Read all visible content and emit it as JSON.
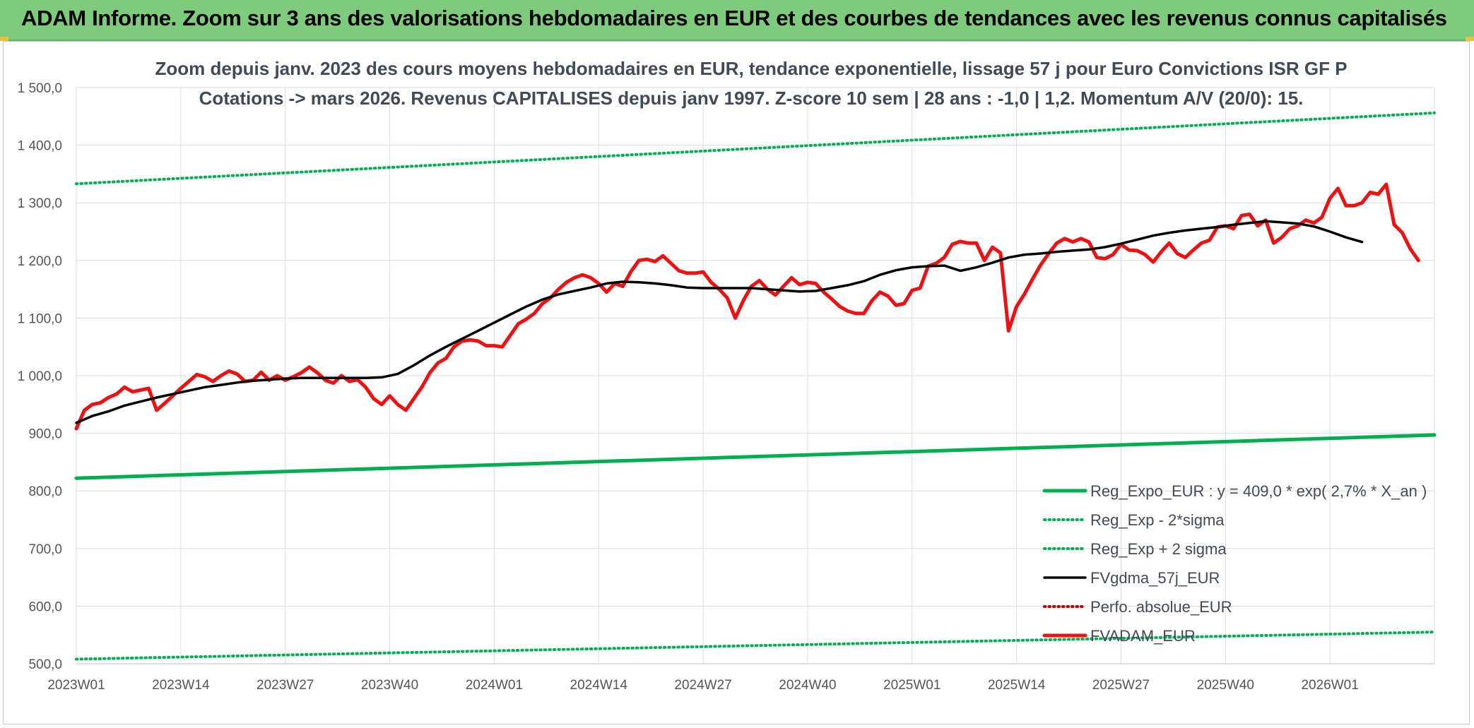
{
  "banner": {
    "title": "ADAM Informe. Zoom sur 3 ans des valorisations hebdomadaires en EUR et des courbes de tendances avec les revenus connus capitalisés"
  },
  "chart_data": {
    "type": "line",
    "title": "Zoom depuis janv. 2023 des cours moyens hebdomadaires en EUR, tendance exponentielle, lissage 57 j pour Euro Convictions ISR GF P",
    "subtitle": "Cotations -> mars 2026. Revenus CAPITALISES depuis janv 1997. Z-score 10 sem | 28 ans : -1,0 | 1,2. Momentum A/V (20/0): 15.",
    "ylim": [
      500,
      1500
    ],
    "y_ticks": [
      "500,0",
      "600,0",
      "700,0",
      "800,0",
      "900,0",
      "1 000,0",
      "1 100,0",
      "1 200,0",
      "1 300,0",
      "1 400,0",
      "1 500,0"
    ],
    "x_ticks": [
      "2023W01",
      "2023W14",
      "2023W27",
      "2023W40",
      "2024W01",
      "2024W14",
      "2024W27",
      "2024W40",
      "2025W01",
      "2025W14",
      "2025W27",
      "2025W40",
      "2026W01"
    ],
    "grid": true,
    "legend_position": "bottom-right",
    "series": [
      {
        "name": "Reg_Expo_EUR : y = 409,0 * exp( 2,7% *  X_an )",
        "color": "#00b050",
        "style": "solid-thick",
        "points": [
          [
            0,
            822
          ],
          [
            169,
            897
          ]
        ]
      },
      {
        "name": "Reg_Exp - 2*sigma",
        "color": "#00b050",
        "style": "dotted",
        "points": [
          [
            0,
            508
          ],
          [
            169,
            555
          ]
        ]
      },
      {
        "name": "Reg_Exp + 2 sigma",
        "color": "#00b050",
        "style": "dotted",
        "points": [
          [
            0,
            1333
          ],
          [
            169,
            1456
          ]
        ]
      },
      {
        "name": "FVgdma_57j_EUR",
        "color": "#000000",
        "style": "solid",
        "points": [
          [
            0,
            918
          ],
          [
            2,
            930
          ],
          [
            4,
            938
          ],
          [
            6,
            948
          ],
          [
            8,
            955
          ],
          [
            10,
            962
          ],
          [
            12,
            968
          ],
          [
            14,
            974
          ],
          [
            16,
            980
          ],
          [
            18,
            984
          ],
          [
            20,
            988
          ],
          [
            22,
            991
          ],
          [
            24,
            993
          ],
          [
            26,
            995
          ],
          [
            28,
            996
          ],
          [
            30,
            996
          ],
          [
            32,
            996
          ],
          [
            34,
            996
          ],
          [
            36,
            996
          ],
          [
            38,
            997
          ],
          [
            40,
            1003
          ],
          [
            42,
            1018
          ],
          [
            44,
            1035
          ],
          [
            46,
            1050
          ],
          [
            48,
            1064
          ],
          [
            50,
            1078
          ],
          [
            52,
            1092
          ],
          [
            54,
            1106
          ],
          [
            56,
            1120
          ],
          [
            58,
            1132
          ],
          [
            60,
            1141
          ],
          [
            62,
            1147
          ],
          [
            64,
            1153
          ],
          [
            66,
            1160
          ],
          [
            68,
            1163
          ],
          [
            70,
            1162
          ],
          [
            72,
            1160
          ],
          [
            74,
            1157
          ],
          [
            76,
            1153
          ],
          [
            78,
            1152
          ],
          [
            80,
            1152
          ],
          [
            82,
            1152
          ],
          [
            84,
            1152
          ],
          [
            86,
            1150
          ],
          [
            88,
            1148
          ],
          [
            90,
            1146
          ],
          [
            92,
            1147
          ],
          [
            94,
            1152
          ],
          [
            96,
            1157
          ],
          [
            98,
            1164
          ],
          [
            100,
            1175
          ],
          [
            102,
            1183
          ],
          [
            104,
            1188
          ],
          [
            106,
            1190
          ],
          [
            108,
            1191
          ],
          [
            110,
            1182
          ],
          [
            112,
            1188
          ],
          [
            114,
            1196
          ],
          [
            116,
            1205
          ],
          [
            118,
            1210
          ],
          [
            120,
            1212
          ],
          [
            122,
            1215
          ],
          [
            124,
            1217
          ],
          [
            126,
            1219
          ],
          [
            128,
            1223
          ],
          [
            130,
            1229
          ],
          [
            132,
            1236
          ],
          [
            134,
            1243
          ],
          [
            136,
            1248
          ],
          [
            138,
            1252
          ],
          [
            140,
            1255
          ],
          [
            142,
            1258
          ],
          [
            144,
            1262
          ],
          [
            146,
            1265
          ],
          [
            148,
            1268
          ],
          [
            150,
            1266
          ],
          [
            152,
            1264
          ],
          [
            154,
            1259
          ],
          [
            156,
            1250
          ],
          [
            158,
            1240
          ],
          [
            160,
            1232
          ]
        ]
      },
      {
        "name": "Perfo. absolue_EUR",
        "color": "#c00000",
        "style": "dotted",
        "points": []
      },
      {
        "name": "FVADAM_EUR",
        "color": "#ee1111",
        "style": "solid-thick",
        "points": [
          [
            0,
            908
          ],
          [
            1,
            940
          ],
          [
            2,
            950
          ],
          [
            3,
            953
          ],
          [
            4,
            962
          ],
          [
            5,
            968
          ],
          [
            6,
            980
          ],
          [
            7,
            972
          ],
          [
            8,
            975
          ],
          [
            9,
            978
          ],
          [
            10,
            940
          ],
          [
            11,
            952
          ],
          [
            12,
            965
          ],
          [
            13,
            978
          ],
          [
            14,
            990
          ],
          [
            15,
            1002
          ],
          [
            16,
            998
          ],
          [
            17,
            990
          ],
          [
            18,
            1000
          ],
          [
            19,
            1008
          ],
          [
            20,
            1003
          ],
          [
            21,
            990
          ],
          [
            22,
            992
          ],
          [
            23,
            1006
          ],
          [
            24,
            992
          ],
          [
            25,
            1000
          ],
          [
            26,
            992
          ],
          [
            27,
            998
          ],
          [
            28,
            1005
          ],
          [
            29,
            1015
          ],
          [
            30,
            1005
          ],
          [
            31,
            992
          ],
          [
            32,
            987
          ],
          [
            33,
            1000
          ],
          [
            34,
            990
          ],
          [
            35,
            993
          ],
          [
            36,
            980
          ],
          [
            37,
            960
          ],
          [
            38,
            950
          ],
          [
            39,
            965
          ],
          [
            40,
            950
          ],
          [
            41,
            940
          ],
          [
            42,
            960
          ],
          [
            43,
            980
          ],
          [
            44,
            1005
          ],
          [
            45,
            1022
          ],
          [
            46,
            1030
          ],
          [
            47,
            1050
          ],
          [
            48,
            1060
          ],
          [
            49,
            1062
          ],
          [
            50,
            1060
          ],
          [
            51,
            1052
          ],
          [
            52,
            1052
          ],
          [
            53,
            1050
          ],
          [
            54,
            1070
          ],
          [
            55,
            1090
          ],
          [
            56,
            1098
          ],
          [
            57,
            1108
          ],
          [
            58,
            1125
          ],
          [
            59,
            1135
          ],
          [
            60,
            1150
          ],
          [
            61,
            1162
          ],
          [
            62,
            1170
          ],
          [
            63,
            1175
          ],
          [
            64,
            1170
          ],
          [
            65,
            1160
          ],
          [
            66,
            1145
          ],
          [
            67,
            1160
          ],
          [
            68,
            1155
          ],
          [
            69,
            1180
          ],
          [
            70,
            1200
          ],
          [
            71,
            1202
          ],
          [
            72,
            1198
          ],
          [
            73,
            1208
          ],
          [
            74,
            1195
          ],
          [
            75,
            1182
          ],
          [
            76,
            1178
          ],
          [
            77,
            1178
          ],
          [
            78,
            1180
          ],
          [
            79,
            1162
          ],
          [
            80,
            1150
          ],
          [
            81,
            1135
          ],
          [
            82,
            1100
          ],
          [
            83,
            1130
          ],
          [
            84,
            1155
          ],
          [
            85,
            1165
          ],
          [
            86,
            1150
          ],
          [
            87,
            1140
          ],
          [
            88,
            1155
          ],
          [
            89,
            1170
          ],
          [
            90,
            1158
          ],
          [
            91,
            1162
          ],
          [
            92,
            1160
          ],
          [
            93,
            1145
          ],
          [
            94,
            1133
          ],
          [
            95,
            1120
          ],
          [
            96,
            1112
          ],
          [
            97,
            1108
          ],
          [
            98,
            1108
          ],
          [
            99,
            1130
          ],
          [
            100,
            1145
          ],
          [
            101,
            1138
          ],
          [
            102,
            1122
          ],
          [
            103,
            1125
          ],
          [
            104,
            1148
          ],
          [
            105,
            1152
          ],
          [
            106,
            1190
          ],
          [
            107,
            1195
          ],
          [
            108,
            1205
          ],
          [
            109,
            1228
          ],
          [
            110,
            1233
          ],
          [
            111,
            1230
          ],
          [
            112,
            1230
          ],
          [
            113,
            1200
          ],
          [
            114,
            1223
          ],
          [
            115,
            1213
          ],
          [
            116,
            1078
          ],
          [
            117,
            1120
          ],
          [
            118,
            1142
          ],
          [
            119,
            1168
          ],
          [
            120,
            1192
          ],
          [
            121,
            1212
          ],
          [
            122,
            1230
          ],
          [
            123,
            1238
          ],
          [
            124,
            1232
          ],
          [
            125,
            1238
          ],
          [
            126,
            1232
          ],
          [
            127,
            1205
          ],
          [
            128,
            1203
          ],
          [
            129,
            1210
          ],
          [
            130,
            1228
          ],
          [
            131,
            1218
          ],
          [
            132,
            1217
          ],
          [
            133,
            1210
          ],
          [
            134,
            1197
          ],
          [
            135,
            1215
          ],
          [
            136,
            1230
          ],
          [
            137,
            1212
          ],
          [
            138,
            1205
          ],
          [
            139,
            1218
          ],
          [
            140,
            1230
          ],
          [
            141,
            1235
          ],
          [
            142,
            1258
          ],
          [
            143,
            1260
          ],
          [
            144,
            1255
          ],
          [
            145,
            1278
          ],
          [
            146,
            1280
          ],
          [
            147,
            1260
          ],
          [
            148,
            1270
          ],
          [
            149,
            1230
          ],
          [
            150,
            1240
          ],
          [
            151,
            1255
          ],
          [
            152,
            1260
          ],
          [
            153,
            1270
          ],
          [
            154,
            1265
          ],
          [
            155,
            1275
          ],
          [
            156,
            1308
          ],
          [
            157,
            1325
          ],
          [
            158,
            1295
          ],
          [
            159,
            1295
          ],
          [
            160,
            1300
          ],
          [
            161,
            1318
          ],
          [
            162,
            1315
          ],
          [
            163,
            1332
          ],
          [
            164,
            1262
          ],
          [
            165,
            1248
          ],
          [
            166,
            1220
          ],
          [
            167,
            1200
          ]
        ]
      }
    ]
  }
}
